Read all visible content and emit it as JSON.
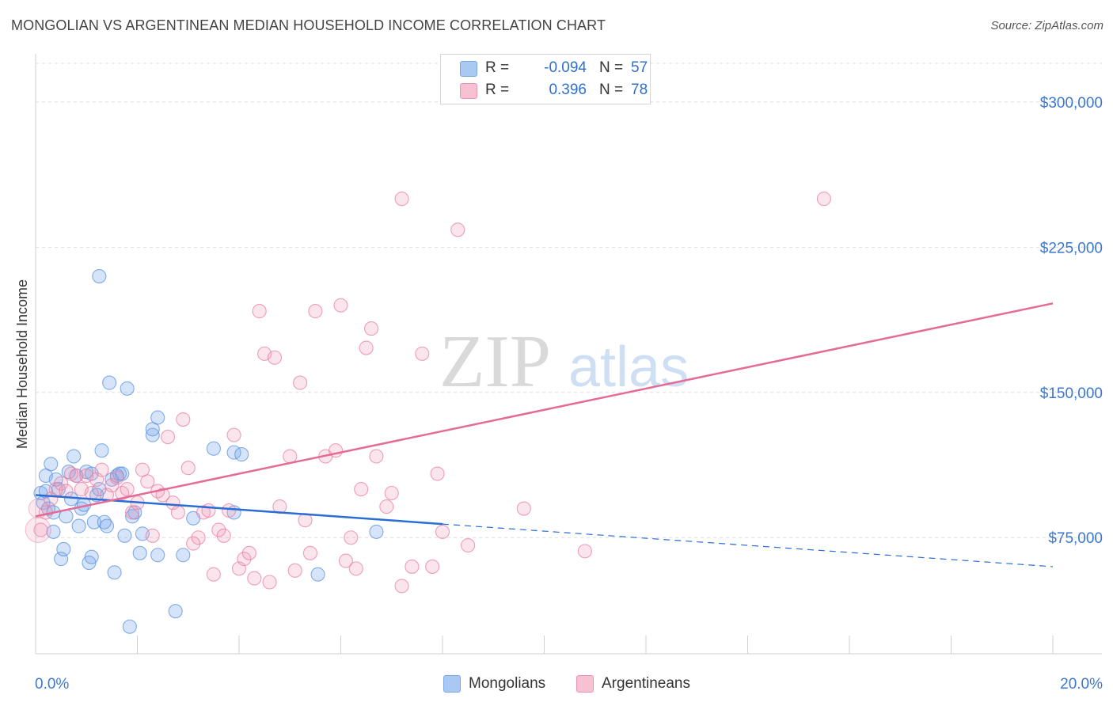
{
  "title": "MONGOLIAN VS ARGENTINEAN MEDIAN HOUSEHOLD INCOME CORRELATION CHART",
  "source": "Source: ZipAtlas.com",
  "watermark": {
    "zip": "ZIP",
    "atlas": "atlas"
  },
  "legend": {
    "rows": [
      {
        "label": "R =",
        "r": "-0.094",
        "n_label": "N =",
        "n": "57",
        "color": "#a9c8f2",
        "border": "#7aa7e6"
      },
      {
        "label": "R =",
        "r": "0.396",
        "n_label": "N =",
        "n": "78",
        "color": "#f7c1d2",
        "border": "#ee93b2"
      }
    ]
  },
  "bottom_legend": [
    {
      "label": "Mongolians",
      "color": "#a9c8f2",
      "border": "#7aa7e6"
    },
    {
      "label": "Argentineans",
      "color": "#f7c1d2",
      "border": "#ee93b2"
    }
  ],
  "chart_data": {
    "type": "scatter",
    "title": "MONGOLIAN VS ARGENTINEAN MEDIAN HOUSEHOLD INCOME CORRELATION CHART",
    "xlabel": "",
    "ylabel": "Median Household Income",
    "xlim": [
      0,
      20
    ],
    "ylim": [
      15000,
      320000
    ],
    "x_tick_labels": [
      "0.0%",
      "20.0%"
    ],
    "y_ticks": [
      75000,
      150000,
      225000,
      300000
    ],
    "y_tick_labels": [
      "$75,000",
      "$150,000",
      "$225,000",
      "$300,000"
    ],
    "grid": true,
    "series": [
      {
        "name": "Mongolians",
        "color": "#5b93e3",
        "fill": "rgba(120,165,235,0.30)",
        "trend": {
          "x": [
            0,
            8
          ],
          "y": [
            97000,
            82000
          ],
          "dash_to_x": 20,
          "dash_to_y": 60000,
          "color": "#2a6dd4"
        },
        "points": [
          [
            0.1,
            98000
          ],
          [
            0.15,
            93000
          ],
          [
            0.2,
            99000
          ],
          [
            0.25,
            90000
          ],
          [
            0.2,
            107000
          ],
          [
            0.3,
            113000
          ],
          [
            0.35,
            88000
          ],
          [
            0.4,
            105000
          ],
          [
            0.45,
            100000
          ],
          [
            0.5,
            64000
          ],
          [
            0.55,
            69000
          ],
          [
            0.6,
            86000
          ],
          [
            0.65,
            109000
          ],
          [
            0.7,
            95000
          ],
          [
            0.75,
            117000
          ],
          [
            0.8,
            107000
          ],
          [
            0.85,
            81000
          ],
          [
            0.9,
            90000
          ],
          [
            0.95,
            92000
          ],
          [
            1.0,
            109000
          ],
          [
            1.05,
            62000
          ],
          [
            1.1,
            108000
          ],
          [
            1.1,
            65000
          ],
          [
            1.15,
            83000
          ],
          [
            1.2,
            97000
          ],
          [
            1.25,
            100000
          ],
          [
            1.3,
            120000
          ],
          [
            1.35,
            83000
          ],
          [
            1.4,
            81000
          ],
          [
            1.45,
            155000
          ],
          [
            1.5,
            105000
          ],
          [
            1.55,
            57000
          ],
          [
            1.6,
            107000
          ],
          [
            1.65,
            108000
          ],
          [
            1.7,
            108000
          ],
          [
            1.75,
            76000
          ],
          [
            1.8,
            152000
          ],
          [
            1.85,
            29000
          ],
          [
            1.9,
            86000
          ],
          [
            1.95,
            88000
          ],
          [
            2.05,
            67000
          ],
          [
            2.1,
            77000
          ],
          [
            1.25,
            210000
          ],
          [
            2.3,
            128000
          ],
          [
            2.3,
            131000
          ],
          [
            2.4,
            137000
          ],
          [
            2.4,
            66000
          ],
          [
            2.75,
            37000
          ],
          [
            3.1,
            85000
          ],
          [
            3.5,
            121000
          ],
          [
            3.9,
            88000
          ],
          [
            3.9,
            119000
          ],
          [
            4.05,
            118000
          ],
          [
            5.55,
            56000
          ],
          [
            6.7,
            78000
          ],
          [
            2.9,
            66000
          ],
          [
            0.35,
            78000
          ]
        ]
      },
      {
        "name": "Argentineans",
        "color": "#ea7fa5",
        "fill": "rgba(240,150,180,0.25)",
        "trend": {
          "x": [
            0,
            20
          ],
          "y": [
            86000,
            196000
          ],
          "color": "#e56b97"
        },
        "points": [
          [
            0.1,
            79000
          ],
          [
            0.2,
            88000
          ],
          [
            0.3,
            95000
          ],
          [
            0.4,
            100000
          ],
          [
            0.5,
            103000
          ],
          [
            0.6,
            99000
          ],
          [
            0.7,
            108000
          ],
          [
            0.8,
            107000
          ],
          [
            0.9,
            100000
          ],
          [
            1.0,
            107000
          ],
          [
            1.1,
            98000
          ],
          [
            1.2,
            105000
          ],
          [
            1.3,
            110000
          ],
          [
            1.4,
            97000
          ],
          [
            1.5,
            102000
          ],
          [
            1.6,
            106000
          ],
          [
            1.7,
            98000
          ],
          [
            1.8,
            100000
          ],
          [
            1.9,
            88000
          ],
          [
            2.0,
            93000
          ],
          [
            2.1,
            110000
          ],
          [
            2.2,
            104000
          ],
          [
            2.3,
            76000
          ],
          [
            2.4,
            99000
          ],
          [
            2.5,
            97000
          ],
          [
            2.6,
            127000
          ],
          [
            2.7,
            93000
          ],
          [
            2.8,
            88000
          ],
          [
            2.9,
            136000
          ],
          [
            3.0,
            111000
          ],
          [
            3.1,
            72000
          ],
          [
            3.2,
            75000
          ],
          [
            3.3,
            88000
          ],
          [
            3.4,
            89000
          ],
          [
            3.5,
            56000
          ],
          [
            3.6,
            79000
          ],
          [
            3.7,
            76000
          ],
          [
            3.8,
            89000
          ],
          [
            3.9,
            128000
          ],
          [
            4.0,
            59000
          ],
          [
            4.1,
            64000
          ],
          [
            4.2,
            67000
          ],
          [
            4.3,
            54000
          ],
          [
            4.4,
            192000
          ],
          [
            4.5,
            170000
          ],
          [
            4.6,
            52000
          ],
          [
            4.7,
            168000
          ],
          [
            4.8,
            91000
          ],
          [
            5.0,
            117000
          ],
          [
            5.1,
            58000
          ],
          [
            5.2,
            155000
          ],
          [
            5.3,
            84000
          ],
          [
            5.4,
            67000
          ],
          [
            5.5,
            192000
          ],
          [
            5.7,
            117000
          ],
          [
            5.9,
            120000
          ],
          [
            6.0,
            195000
          ],
          [
            6.1,
            63000
          ],
          [
            6.2,
            75000
          ],
          [
            6.3,
            59000
          ],
          [
            6.4,
            100000
          ],
          [
            6.5,
            173000
          ],
          [
            6.6,
            183000
          ],
          [
            6.7,
            117000
          ],
          [
            6.9,
            91000
          ],
          [
            7.0,
            98000
          ],
          [
            7.2,
            50000
          ],
          [
            7.4,
            60000
          ],
          [
            7.6,
            170000
          ],
          [
            7.8,
            60000
          ],
          [
            7.2,
            250000
          ],
          [
            7.9,
            108000
          ],
          [
            8.0,
            78000
          ],
          [
            8.3,
            234000
          ],
          [
            8.5,
            71000
          ],
          [
            9.6,
            90000
          ],
          [
            10.8,
            68000
          ],
          [
            15.5,
            250000
          ]
        ]
      }
    ]
  }
}
